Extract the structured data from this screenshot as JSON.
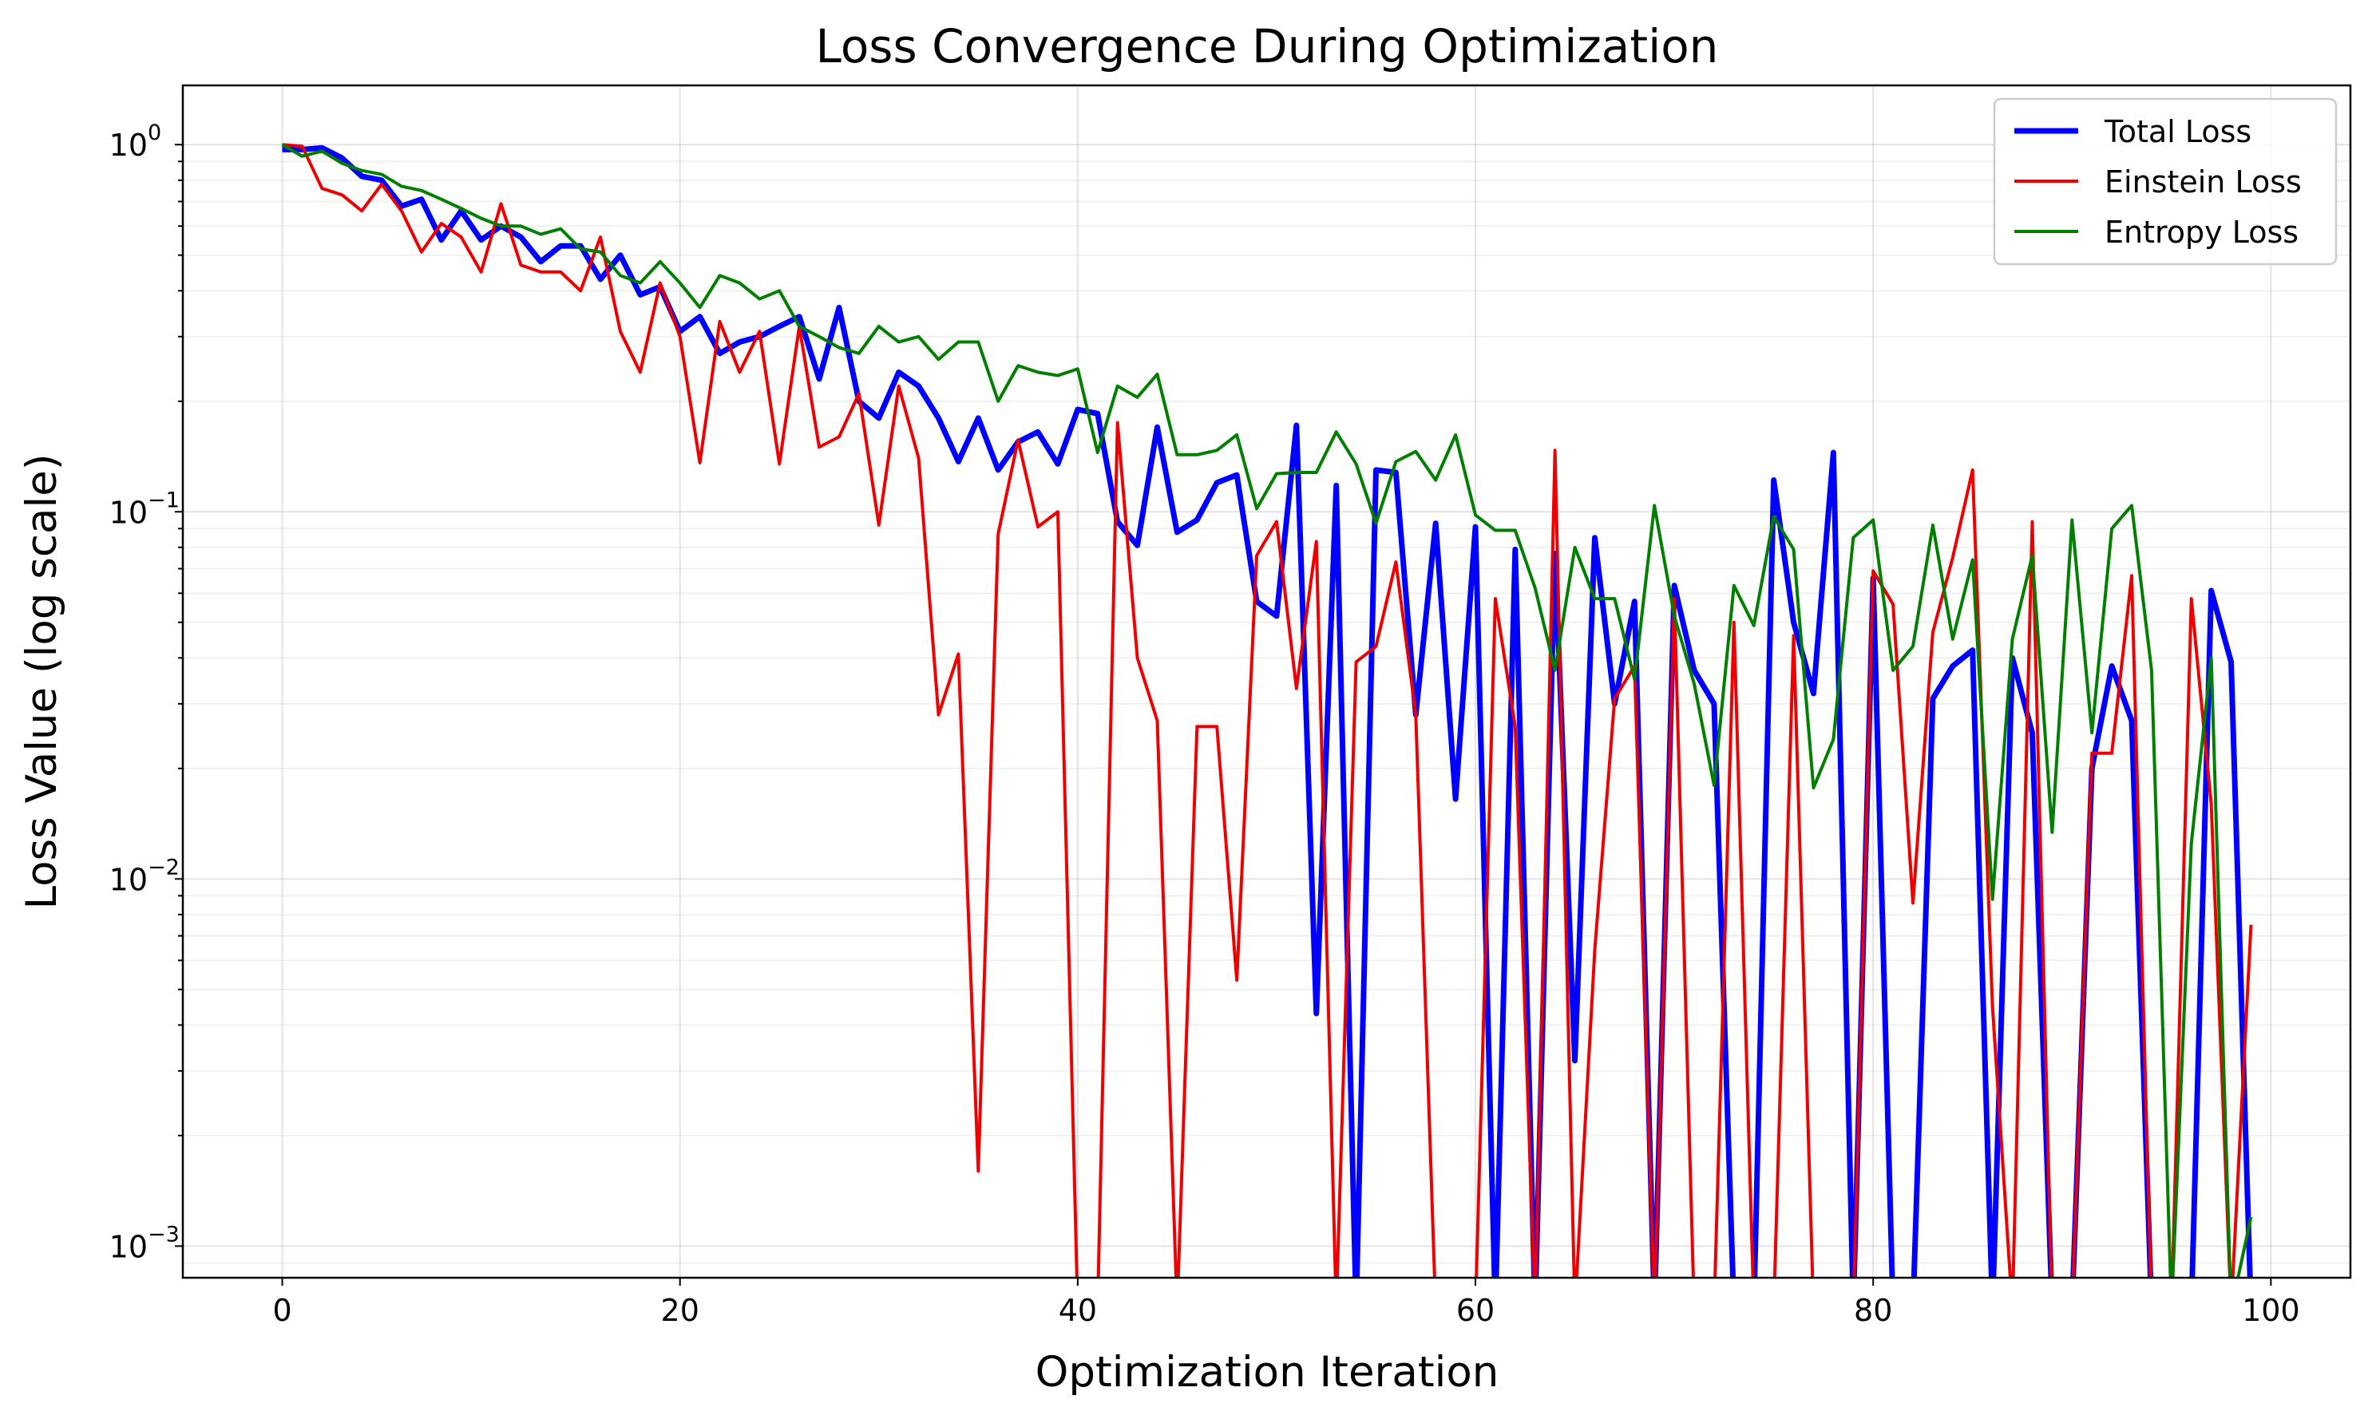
{
  "chart_data": {
    "type": "line",
    "title": "Loss Convergence During Optimization",
    "xlabel": "Optimization Iteration",
    "ylabel": "Loss Value (log scale)",
    "y_scale": "log",
    "xlim": [
      -5,
      104
    ],
    "ylim": [
      0.00082,
      1.45
    ],
    "grid": true,
    "legend_position": "top-right",
    "x_ticks": [
      0,
      20,
      40,
      60,
      80,
      100
    ],
    "y_ticks": [
      {
        "value": 0.001,
        "base": "10",
        "exp": "−3"
      },
      {
        "value": 0.01,
        "base": "10",
        "exp": "−2"
      },
      {
        "value": 0.1,
        "base": "10",
        "exp": "−1"
      },
      {
        "value": 1,
        "base": "10",
        "exp": "0"
      }
    ],
    "series": [
      {
        "name": "Total Loss",
        "color": "#0000ff",
        "linewidth": 7,
        "x": [
          0,
          1,
          2,
          3,
          4,
          5,
          6,
          7,
          8,
          9,
          10,
          11,
          12,
          13,
          14,
          15,
          16,
          17,
          18,
          19,
          20,
          21,
          22,
          23,
          24,
          25,
          26,
          27,
          28,
          29,
          30,
          31,
          32,
          33,
          34,
          35,
          36,
          37,
          38,
          39,
          40,
          41,
          42,
          43,
          44,
          45,
          46,
          47,
          48,
          49,
          50,
          51,
          52,
          53,
          54,
          55,
          56,
          57,
          58,
          59,
          60,
          61,
          62,
          63,
          64,
          65,
          66,
          67,
          68,
          69,
          70,
          71,
          72,
          73,
          74,
          75,
          76,
          77,
          78,
          79,
          80,
          81,
          82,
          83,
          84,
          85,
          86,
          87,
          88,
          89,
          90,
          91,
          92,
          93,
          94,
          95,
          96,
          97,
          98,
          99
        ],
        "y": [
          0.97,
          0.97,
          0.98,
          0.92,
          0.82,
          0.8,
          0.68,
          0.71,
          0.55,
          0.66,
          0.55,
          0.6,
          0.56,
          0.48,
          0.53,
          0.53,
          0.43,
          0.5,
          0.39,
          0.41,
          0.31,
          0.34,
          0.27,
          0.29,
          0.3,
          0.32,
          0.34,
          0.23,
          0.36,
          0.2,
          0.18,
          0.24,
          0.22,
          0.18,
          0.137,
          0.18,
          0.13,
          0.155,
          0.165,
          0.135,
          0.19,
          0.185,
          0.094,
          0.081,
          0.17,
          0.088,
          0.095,
          0.12,
          0.126,
          0.057,
          0.052,
          0.172,
          0.0043,
          0.118,
          null,
          0.13,
          0.128,
          0.028,
          0.093,
          0.0165,
          0.091,
          null,
          0.079,
          null,
          0.077,
          0.0032,
          0.085,
          0.03,
          0.057,
          null,
          0.063,
          0.037,
          0.03,
          null,
          null,
          0.122,
          0.05,
          0.032,
          0.145,
          null,
          0.066,
          null,
          null,
          0.031,
          0.038,
          0.042,
          null,
          0.04,
          0.025,
          null,
          null,
          0.02,
          0.038,
          0.027,
          null,
          null,
          null,
          0.061,
          0.039,
          null
        ]
      },
      {
        "name": "Einstein Loss",
        "color": "#ee0000",
        "linewidth": 4,
        "x": [
          0,
          1,
          2,
          3,
          4,
          5,
          6,
          7,
          8,
          9,
          10,
          11,
          12,
          13,
          14,
          15,
          16,
          17,
          18,
          19,
          20,
          21,
          22,
          23,
          24,
          25,
          26,
          27,
          28,
          29,
          30,
          31,
          32,
          33,
          34,
          35,
          36,
          37,
          38,
          39,
          40,
          41,
          42,
          43,
          44,
          45,
          46,
          47,
          48,
          49,
          50,
          51,
          52,
          53,
          54,
          55,
          56,
          57,
          58,
          59,
          60,
          61,
          62,
          63,
          64,
          65,
          66,
          67,
          68,
          69,
          70,
          71,
          72,
          73,
          74,
          75,
          76,
          77,
          78,
          79,
          80,
          81,
          82,
          83,
          84,
          85,
          86,
          87,
          88,
          89,
          90,
          91,
          92,
          93,
          94,
          95,
          96,
          97,
          98,
          99
        ],
        "y": [
          1.0,
          0.99,
          0.76,
          0.73,
          0.66,
          0.78,
          0.66,
          0.51,
          0.61,
          0.56,
          0.45,
          0.69,
          0.47,
          0.45,
          0.45,
          0.4,
          0.56,
          0.31,
          0.24,
          0.42,
          0.3,
          0.136,
          0.33,
          0.24,
          0.31,
          0.135,
          0.32,
          0.15,
          0.16,
          0.21,
          0.092,
          0.22,
          0.14,
          0.028,
          0.041,
          0.0016,
          0.087,
          0.157,
          0.091,
          0.1,
          null,
          null,
          0.175,
          0.04,
          0.027,
          null,
          0.026,
          0.026,
          0.0053,
          0.076,
          0.094,
          0.033,
          0.083,
          null,
          0.039,
          0.043,
          0.073,
          0.028,
          null,
          null,
          null,
          0.058,
          0.026,
          null,
          0.147,
          null,
          0.0064,
          0.031,
          0.038,
          null,
          0.058,
          null,
          null,
          0.05,
          null,
          null,
          0.046,
          null,
          null,
          null,
          0.069,
          0.056,
          0.0086,
          0.047,
          0.075,
          0.13,
          0.0045,
          null,
          0.094,
          null,
          null,
          0.022,
          0.022,
          0.067,
          null,
          null,
          0.058,
          0.016,
          null,
          0.0075
        ]
      },
      {
        "name": "Entropy Loss",
        "color": "#007f00",
        "linewidth": 4,
        "x": [
          0,
          1,
          2,
          3,
          4,
          5,
          6,
          7,
          8,
          9,
          10,
          11,
          12,
          13,
          14,
          15,
          16,
          17,
          18,
          19,
          20,
          21,
          22,
          23,
          24,
          25,
          26,
          27,
          28,
          29,
          30,
          31,
          32,
          33,
          34,
          35,
          36,
          37,
          38,
          39,
          40,
          41,
          42,
          43,
          44,
          45,
          46,
          47,
          48,
          49,
          50,
          51,
          52,
          53,
          54,
          55,
          56,
          57,
          58,
          59,
          60,
          61,
          62,
          63,
          64,
          65,
          66,
          67,
          68,
          69,
          70,
          71,
          72,
          73,
          74,
          75,
          76,
          77,
          78,
          79,
          80,
          81,
          82,
          83,
          84,
          85,
          86,
          87,
          88,
          89,
          90,
          91,
          92,
          93,
          94,
          95,
          96,
          97,
          98,
          99
        ],
        "y": [
          1.0,
          0.93,
          0.96,
          0.89,
          0.85,
          0.83,
          0.77,
          0.75,
          0.71,
          0.67,
          0.63,
          0.6,
          0.6,
          0.57,
          0.59,
          0.52,
          0.51,
          0.44,
          0.42,
          0.48,
          0.42,
          0.36,
          0.44,
          0.42,
          0.38,
          0.4,
          0.32,
          0.3,
          0.28,
          0.27,
          0.32,
          0.29,
          0.3,
          0.26,
          0.29,
          0.29,
          0.2,
          0.25,
          0.24,
          0.235,
          0.245,
          0.145,
          0.22,
          0.205,
          0.237,
          0.143,
          0.143,
          0.147,
          0.162,
          0.102,
          0.127,
          0.128,
          0.128,
          0.165,
          0.135,
          0.093,
          0.137,
          0.146,
          0.122,
          0.162,
          0.098,
          0.089,
          0.089,
          0.062,
          0.037,
          0.08,
          0.058,
          0.058,
          0.035,
          0.104,
          0.052,
          0.034,
          0.018,
          0.063,
          0.049,
          0.097,
          0.079,
          0.0177,
          0.024,
          0.085,
          0.095,
          0.037,
          0.043,
          0.092,
          0.045,
          0.074,
          0.0088,
          0.045,
          0.076,
          0.0134,
          0.095,
          0.025,
          0.09,
          0.104,
          0.037,
          null,
          0.0125,
          0.04,
          null,
          0.0012
        ]
      }
    ]
  }
}
